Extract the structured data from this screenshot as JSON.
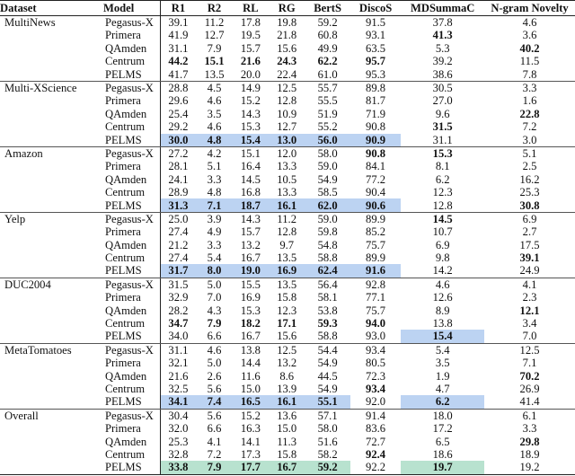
{
  "table": {
    "headers": [
      "Dataset",
      "Model",
      "R1",
      "R2",
      "RL",
      "RG",
      "BertS",
      "DiscoS",
      "MDSummaC",
      "N-gram Novelty"
    ],
    "highlight_colors": {
      "blue": "#bcd3f2",
      "green": "#b8e2cf"
    },
    "groups": [
      {
        "dataset": "MultiNews",
        "rows": [
          {
            "model": "Pegasus-X",
            "values": [
              "39.1",
              "11.2",
              "17.8",
              "19.8",
              "59.2",
              "91.5",
              "37.8",
              "4.6"
            ],
            "bold": [],
            "highlight": []
          },
          {
            "model": "Primera",
            "values": [
              "41.9",
              "12.7",
              "19.5",
              "21.8",
              "60.8",
              "93.1",
              "41.3",
              "3.6"
            ],
            "bold": [
              6
            ],
            "highlight": []
          },
          {
            "model": "QAmden",
            "values": [
              "31.1",
              "7.9",
              "15.7",
              "15.6",
              "49.9",
              "63.5",
              "5.3",
              "40.2"
            ],
            "bold": [
              7
            ],
            "highlight": []
          },
          {
            "model": "Centrum",
            "values": [
              "44.2",
              "15.1",
              "21.6",
              "24.3",
              "62.2",
              "95.7",
              "39.2",
              "11.5"
            ],
            "bold": [
              0,
              1,
              2,
              3,
              4,
              5
            ],
            "highlight": []
          },
          {
            "model": "PELMS",
            "values": [
              "41.7",
              "13.5",
              "20.0",
              "22.4",
              "61.0",
              "95.3",
              "38.6",
              "7.8"
            ],
            "bold": [],
            "highlight": []
          }
        ]
      },
      {
        "dataset": "Multi-XScience",
        "rows": [
          {
            "model": "Pegasus-X",
            "values": [
              "28.8",
              "4.5",
              "14.9",
              "12.5",
              "55.7",
              "89.8",
              "30.5",
              "3.3"
            ],
            "bold": [],
            "highlight": []
          },
          {
            "model": "Primera",
            "values": [
              "29.6",
              "4.6",
              "15.2",
              "12.8",
              "55.5",
              "81.7",
              "27.0",
              "1.6"
            ],
            "bold": [],
            "highlight": []
          },
          {
            "model": "QAmden",
            "values": [
              "25.4",
              "3.5",
              "14.3",
              "10.9",
              "51.9",
              "71.9",
              "9.6",
              "22.8"
            ],
            "bold": [
              7
            ],
            "highlight": []
          },
          {
            "model": "Centrum",
            "values": [
              "29.2",
              "4.6",
              "15.3",
              "12.7",
              "55.2",
              "90.8",
              "31.5",
              "7.2"
            ],
            "bold": [
              6
            ],
            "highlight": []
          },
          {
            "model": "PELMS",
            "values": [
              "30.0",
              "4.8",
              "15.4",
              "13.0",
              "56.0",
              "90.9",
              "31.1",
              "3.0"
            ],
            "bold": [
              0,
              1,
              2,
              3,
              4,
              5
            ],
            "highlight": [
              0,
              1,
              2,
              3,
              4,
              5
            ]
          }
        ]
      },
      {
        "dataset": "Amazon",
        "rows": [
          {
            "model": "Pegasus-X",
            "values": [
              "27.2",
              "4.2",
              "15.1",
              "12.0",
              "58.0",
              "90.8",
              "15.3",
              "5.1"
            ],
            "bold": [
              5,
              6
            ],
            "highlight": []
          },
          {
            "model": "Primera",
            "values": [
              "28.1",
              "5.1",
              "16.4",
              "13.3",
              "59.0",
              "84.1",
              "8.1",
              "2.5"
            ],
            "bold": [],
            "highlight": []
          },
          {
            "model": "QAmden",
            "values": [
              "24.1",
              "3.3",
              "14.5",
              "10.5",
              "54.9",
              "77.2",
              "6.2",
              "16.2"
            ],
            "bold": [],
            "highlight": []
          },
          {
            "model": "Centrum",
            "values": [
              "28.9",
              "4.8",
              "16.8",
              "13.3",
              "58.5",
              "90.4",
              "12.3",
              "25.3"
            ],
            "bold": [],
            "highlight": []
          },
          {
            "model": "PELMS",
            "values": [
              "31.3",
              "7.1",
              "18.7",
              "16.1",
              "62.0",
              "90.6",
              "12.8",
              "30.8"
            ],
            "bold": [
              0,
              1,
              2,
              3,
              4,
              5,
              7
            ],
            "highlight": [
              0,
              1,
              2,
              3,
              4,
              5
            ]
          }
        ]
      },
      {
        "dataset": "Yelp",
        "rows": [
          {
            "model": "Pegasus-X",
            "values": [
              "25.0",
              "3.9",
              "14.3",
              "11.2",
              "59.0",
              "89.9",
              "14.5",
              "6.9"
            ],
            "bold": [
              6
            ],
            "highlight": []
          },
          {
            "model": "Primera",
            "values": [
              "27.4",
              "4.9",
              "15.7",
              "12.8",
              "59.8",
              "85.2",
              "10.7",
              "2.7"
            ],
            "bold": [],
            "highlight": []
          },
          {
            "model": "QAmden",
            "values": [
              "21.2",
              "3.3",
              "13.2",
              "9.7",
              "54.8",
              "75.7",
              "6.9",
              "17.5"
            ],
            "bold": [],
            "highlight": []
          },
          {
            "model": "Centrum",
            "values": [
              "27.4",
              "5.4",
              "16.7",
              "13.5",
              "58.8",
              "89.9",
              "9.8",
              "39.1"
            ],
            "bold": [
              7
            ],
            "highlight": []
          },
          {
            "model": "PELMS",
            "values": [
              "31.7",
              "8.0",
              "19.0",
              "16.9",
              "62.4",
              "91.6",
              "14.2",
              "24.9"
            ],
            "bold": [
              0,
              1,
              2,
              3,
              4,
              5
            ],
            "highlight": [
              0,
              1,
              2,
              3,
              4,
              5
            ]
          }
        ]
      },
      {
        "dataset": "DUC2004",
        "rows": [
          {
            "model": "Pegasus-X",
            "values": [
              "31.5",
              "5.0",
              "15.5",
              "13.5",
              "56.4",
              "92.8",
              "4.6",
              "4.1"
            ],
            "bold": [],
            "highlight": []
          },
          {
            "model": "Primera",
            "values": [
              "32.9",
              "7.0",
              "16.9",
              "15.8",
              "58.1",
              "77.1",
              "12.6",
              "2.3"
            ],
            "bold": [],
            "highlight": []
          },
          {
            "model": "QAmden",
            "values": [
              "28.2",
              "4.3",
              "15.3",
              "12.3",
              "53.8",
              "75.7",
              "8.9",
              "12.1"
            ],
            "bold": [
              7
            ],
            "highlight": []
          },
          {
            "model": "Centrum",
            "values": [
              "34.7",
              "7.9",
              "18.2",
              "17.1",
              "59.3",
              "94.0",
              "13.8",
              "3.4"
            ],
            "bold": [
              0,
              1,
              2,
              3,
              4,
              5
            ],
            "highlight": []
          },
          {
            "model": "PELMS",
            "values": [
              "34.0",
              "6.6",
              "16.7",
              "15.6",
              "58.8",
              "93.0",
              "15.4",
              "7.0"
            ],
            "bold": [
              6
            ],
            "highlight": [
              6
            ]
          }
        ]
      },
      {
        "dataset": "MetaTomatoes",
        "rows": [
          {
            "model": "Pegasus-X",
            "values": [
              "31.1",
              "4.6",
              "13.8",
              "12.5",
              "54.4",
              "93.4",
              "5.4",
              "12.5"
            ],
            "bold": [],
            "highlight": []
          },
          {
            "model": "Primera",
            "values": [
              "32.1",
              "5.0",
              "14.4",
              "13.2",
              "54.9",
              "80.5",
              "3.5",
              "7.1"
            ],
            "bold": [],
            "highlight": []
          },
          {
            "model": "QAmden",
            "values": [
              "21.6",
              "2.6",
              "11.6",
              "8.6",
              "44.5",
              "72.3",
              "1.9",
              "70.2"
            ],
            "bold": [
              7
            ],
            "highlight": []
          },
          {
            "model": "Centrum",
            "values": [
              "32.5",
              "5.6",
              "15.0",
              "13.9",
              "54.9",
              "93.4",
              "4.7",
              "26.9"
            ],
            "bold": [
              5
            ],
            "highlight": []
          },
          {
            "model": "PELMS",
            "values": [
              "34.1",
              "7.4",
              "16.5",
              "16.1",
              "55.1",
              "92.0",
              "6.2",
              "41.4"
            ],
            "bold": [
              0,
              1,
              2,
              3,
              4,
              6
            ],
            "highlight": [
              0,
              1,
              2,
              3,
              4,
              6
            ]
          }
        ]
      },
      {
        "dataset": "Overall",
        "rows": [
          {
            "model": "Pegasus-X",
            "values": [
              "30.4",
              "5.6",
              "15.2",
              "13.6",
              "57.1",
              "91.4",
              "18.0",
              "6.1"
            ],
            "bold": [],
            "highlight": []
          },
          {
            "model": "Primera",
            "values": [
              "32.0",
              "6.6",
              "16.3",
              "15.0",
              "58.0",
              "83.6",
              "17.2",
              "3.3"
            ],
            "bold": [],
            "highlight": []
          },
          {
            "model": "QAmden",
            "values": [
              "25.3",
              "4.1",
              "14.1",
              "11.3",
              "51.6",
              "72.7",
              "6.5",
              "29.8"
            ],
            "bold": [
              7
            ],
            "highlight": []
          },
          {
            "model": "Centrum",
            "values": [
              "32.8",
              "7.2",
              "17.3",
              "15.8",
              "58.2",
              "92.4",
              "18.6",
              "18.9"
            ],
            "bold": [
              5
            ],
            "highlight": []
          },
          {
            "model": "PELMS",
            "values": [
              "33.8",
              "7.9",
              "17.7",
              "16.7",
              "59.2",
              "92.2",
              "19.7",
              "19.2"
            ],
            "bold": [
              0,
              1,
              2,
              3,
              4,
              6
            ],
            "highlight": [
              0,
              1,
              2,
              3,
              4,
              6
            ],
            "highlight_color": "green"
          }
        ]
      }
    ]
  }
}
